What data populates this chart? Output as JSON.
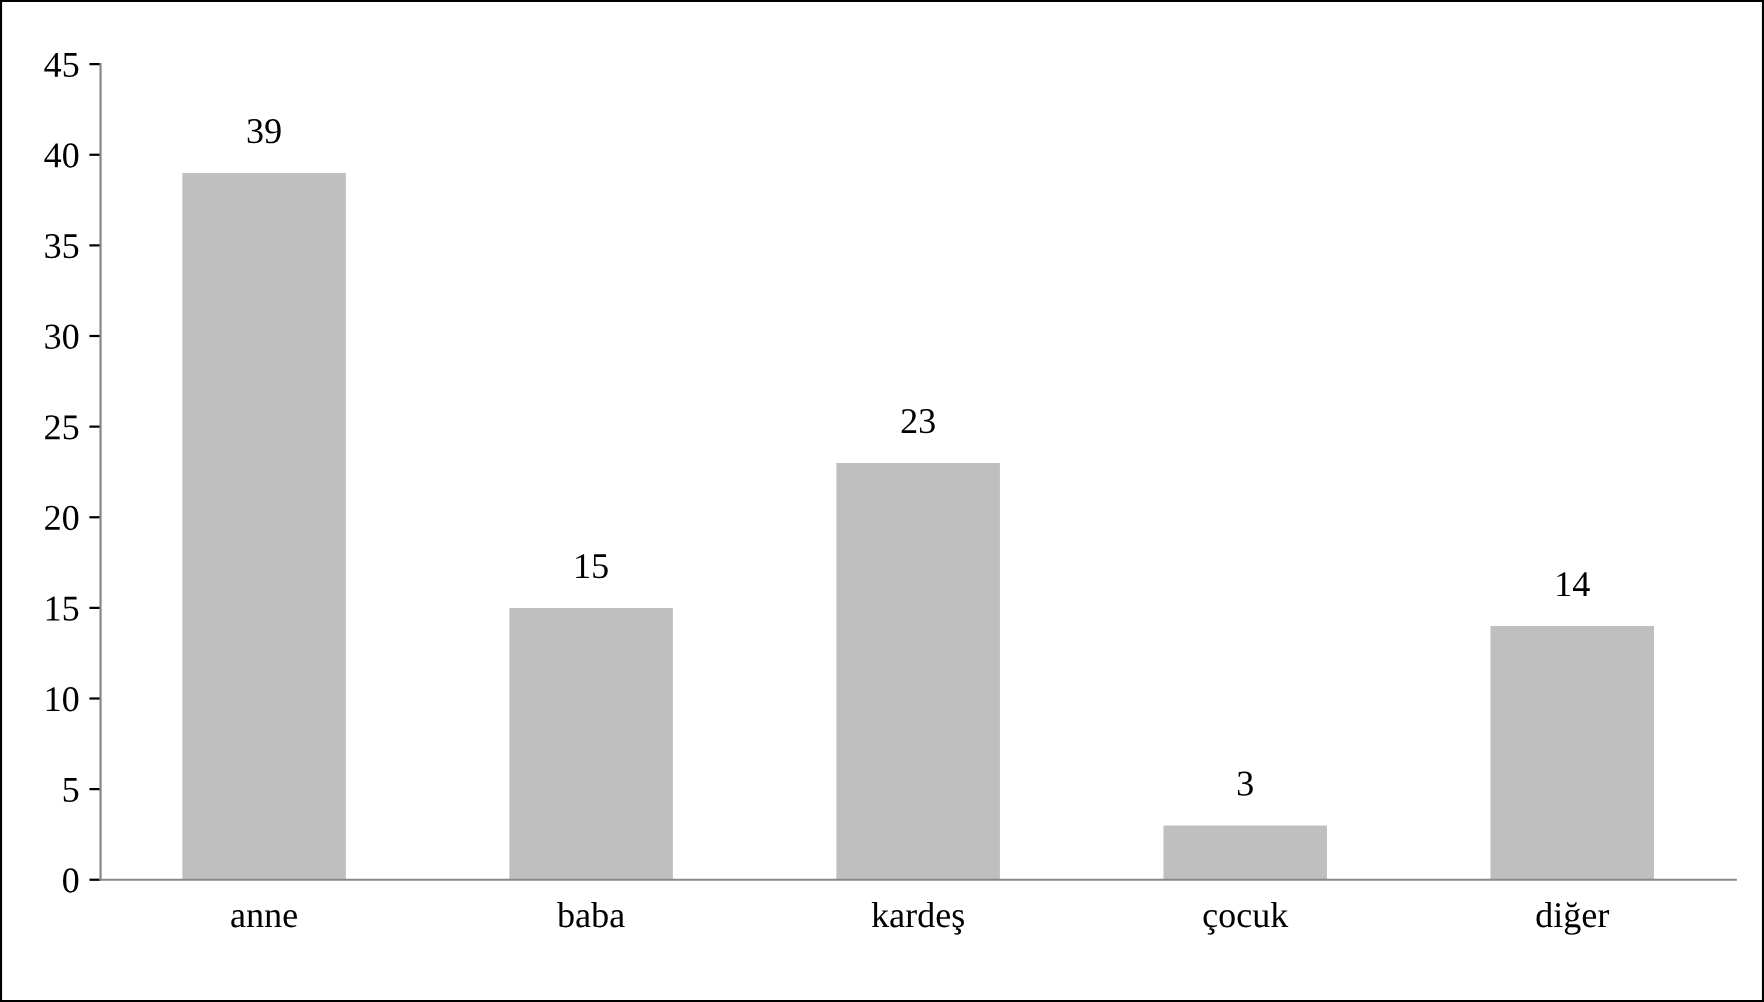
{
  "chart_data": {
    "type": "bar",
    "categories": [
      "anne",
      "baba",
      "kardeş",
      "çocuk",
      "diğer"
    ],
    "values": [
      39,
      15,
      23,
      3,
      14
    ],
    "color": "#bfbfbf",
    "ylim": [
      0,
      45
    ],
    "yticks": [
      0,
      5,
      10,
      15,
      20,
      25,
      30,
      35,
      40,
      45
    ],
    "grid": false,
    "data_labels": true
  }
}
